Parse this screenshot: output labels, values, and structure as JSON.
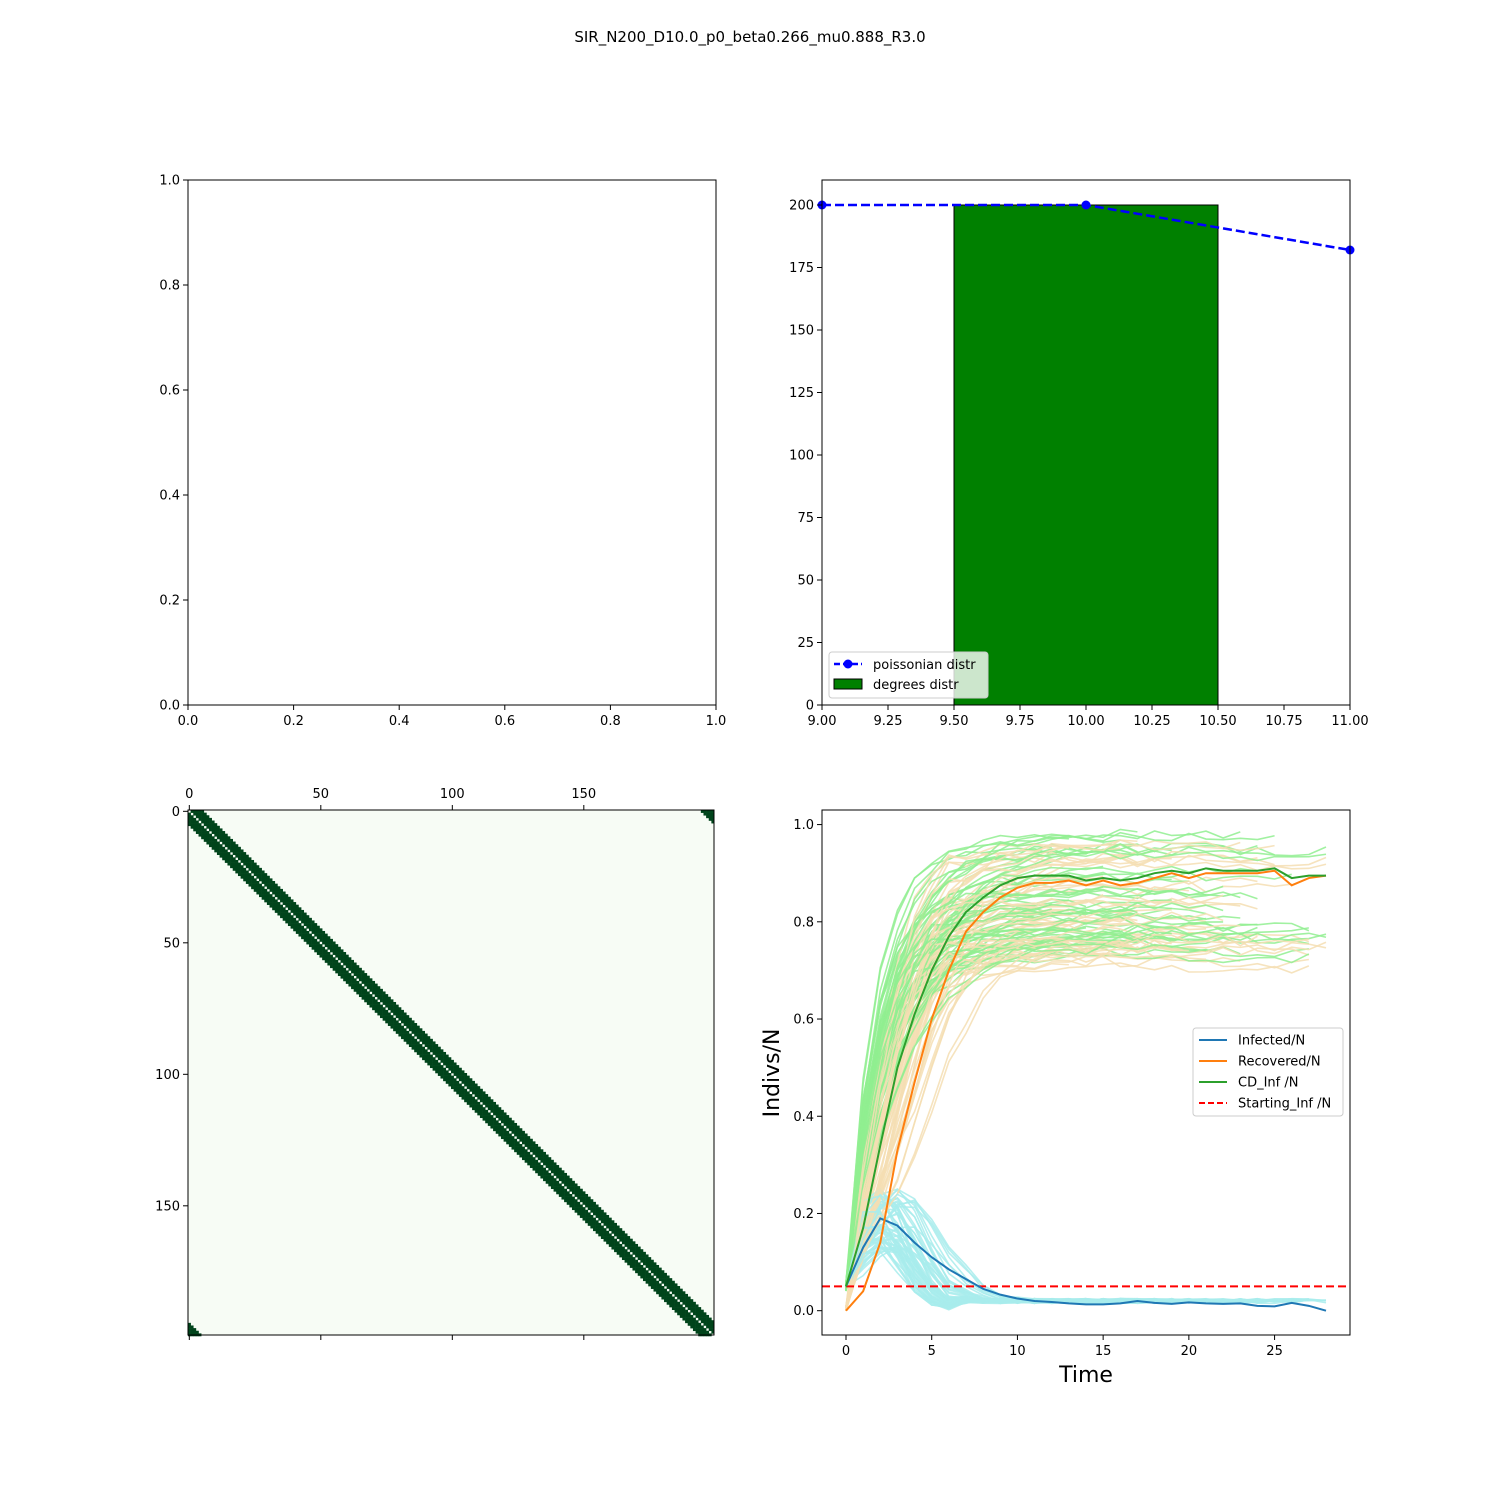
{
  "figure": {
    "title": "SIR_N200_D10.0_p0_beta0.266_mu0.888_R3.0"
  },
  "chart_data": [
    {
      "panel": "top-left",
      "type": "line",
      "empty": true,
      "xlim": [
        0,
        1
      ],
      "ylim": [
        0,
        1
      ],
      "xticks": [
        "0.0",
        "0.2",
        "0.4",
        "0.6",
        "0.8",
        "1.0"
      ],
      "yticks": [
        "0.0",
        "0.2",
        "0.4",
        "0.6",
        "0.8",
        "1.0"
      ]
    },
    {
      "panel": "top-right",
      "type": "bar",
      "xlim": [
        9,
        11
      ],
      "ylim": [
        0,
        210
      ],
      "xticks": [
        "9.00",
        "9.25",
        "9.50",
        "9.75",
        "10.00",
        "10.25",
        "10.50",
        "10.75",
        "11.00"
      ],
      "yticks": [
        "0",
        "25",
        "50",
        "75",
        "100",
        "125",
        "150",
        "175",
        "200"
      ],
      "bars": [
        {
          "x_start": 9.5,
          "x_end": 10.5,
          "value": 200,
          "color": "#008000"
        }
      ],
      "line": {
        "name": "poissonian distr",
        "color": "#0000ff",
        "style": "dashed",
        "x": [
          9,
          10,
          11
        ],
        "y": [
          200,
          200,
          182
        ]
      },
      "legend": {
        "position": "lower-left",
        "entries": [
          "poissonian distr",
          "degrees distr"
        ]
      }
    },
    {
      "panel": "bottom-left",
      "type": "heatmap",
      "description_note": "adjacency matrix, ring lattice",
      "n": 200,
      "degree": 10,
      "filled_color": "#00441b",
      "empty_color": "#f7fcf5",
      "xticks": [
        "0",
        "50",
        "100",
        "150"
      ],
      "yticks": [
        "0",
        "50",
        "100",
        "150"
      ]
    },
    {
      "panel": "bottom-right",
      "type": "line",
      "xlabel": "Time",
      "ylabel": "Indivs/N",
      "xlim": [
        -1.4,
        29.4
      ],
      "ylim": [
        -0.05,
        1.03
      ],
      "xticks": [
        "0",
        "5",
        "10",
        "15",
        "20",
        "25"
      ],
      "yticks": [
        "0.0",
        "0.2",
        "0.4",
        "0.6",
        "0.8",
        "1.0"
      ],
      "x": [
        0,
        1,
        2,
        3,
        4,
        5,
        6,
        7,
        8,
        9,
        10,
        11,
        12,
        13,
        14,
        15,
        16,
        17,
        18,
        19,
        20,
        21,
        22,
        23,
        24,
        25,
        26,
        27,
        28
      ],
      "series": [
        {
          "name": "Infected/N",
          "color": "#1f77b4",
          "values": [
            0.05,
            0.13,
            0.19,
            0.175,
            0.14,
            0.11,
            0.085,
            0.065,
            0.045,
            0.033,
            0.025,
            0.02,
            0.018,
            0.015,
            0.013,
            0.013,
            0.015,
            0.02,
            0.016,
            0.014,
            0.017,
            0.015,
            0.014,
            0.015,
            0.01,
            0.009,
            0.016,
            0.01,
            0.0
          ]
        },
        {
          "name": "Recovered/N",
          "color": "#ff7f0e",
          "values": [
            0.0,
            0.04,
            0.14,
            0.33,
            0.47,
            0.6,
            0.7,
            0.78,
            0.82,
            0.85,
            0.87,
            0.88,
            0.88,
            0.885,
            0.875,
            0.885,
            0.875,
            0.88,
            0.89,
            0.9,
            0.89,
            0.9,
            0.9,
            0.9,
            0.9,
            0.905,
            0.875,
            0.89,
            0.895
          ]
        },
        {
          "name": "CD_Inf /N",
          "color": "#2ca02c",
          "values": [
            0.05,
            0.17,
            0.34,
            0.5,
            0.61,
            0.7,
            0.77,
            0.82,
            0.85,
            0.875,
            0.89,
            0.895,
            0.895,
            0.895,
            0.885,
            0.89,
            0.885,
            0.89,
            0.9,
            0.905,
            0.9,
            0.91,
            0.905,
            0.905,
            0.905,
            0.91,
            0.89,
            0.895,
            0.895
          ]
        },
        {
          "name": "Starting_Inf /N",
          "color": "#ff0000",
          "style": "dashed",
          "constant": 0.05
        }
      ],
      "background_runs": {
        "count": 60,
        "infected_color": "#a8ecec",
        "recovered_color": "#f5deb3",
        "cd_color": "#90ee90"
      },
      "legend": {
        "position": "center-right",
        "entries": [
          "Infected/N",
          "Recovered/N",
          "CD_Inf /N",
          "Starting_Inf /N"
        ]
      }
    }
  ]
}
